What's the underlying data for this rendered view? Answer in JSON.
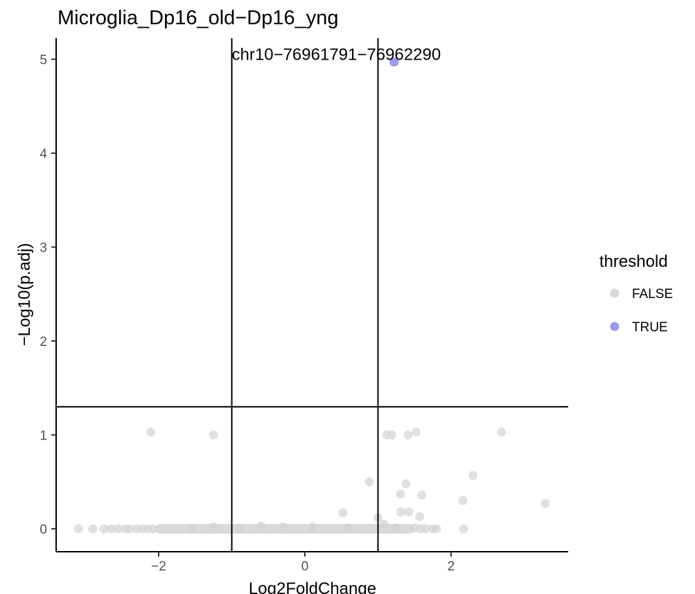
{
  "chart_data": {
    "type": "scatter",
    "title": "Microglia_Dp16_old−Dp16_yng",
    "xlabel": "Log2FoldChange",
    "ylabel": "−Log10(p.adj)",
    "xlim": [
      -3.4,
      3.6
    ],
    "ylim": [
      -0.25,
      5.2
    ],
    "xticks": [
      -2,
      0,
      2
    ],
    "xtick_labels": [
      "−2",
      "0",
      "2"
    ],
    "yticks": [
      0,
      1,
      2,
      3,
      4,
      5
    ],
    "ytick_labels": [
      "0",
      "1",
      "2",
      "3",
      "4",
      "5"
    ],
    "grid": false,
    "reference_lines": {
      "vertical": [
        -1,
        1
      ],
      "horizontal": [
        1.3
      ]
    },
    "legend": {
      "title": "threshold",
      "placement": "right",
      "entries": [
        {
          "label": "FALSE",
          "color": "#d3d3d3"
        },
        {
          "label": "TRUE",
          "color": "#8f8ff0"
        }
      ]
    },
    "annotations": [
      {
        "text": "chr10−76961791−76962290",
        "x": 0.43,
        "y": 5.0
      }
    ],
    "dense_band": {
      "x_from": -2.05,
      "x_to": 1.5,
      "y": 0.0
    },
    "series": [
      {
        "name": "FALSE",
        "color": "#d3d3d3",
        "points": [
          [
            -3.1,
            0
          ],
          [
            -2.9,
            0
          ],
          [
            -2.75,
            0
          ],
          [
            -2.65,
            0
          ],
          [
            -2.55,
            0
          ],
          [
            -2.45,
            0
          ],
          [
            -2.4,
            0
          ],
          [
            -2.3,
            0
          ],
          [
            -2.22,
            0
          ],
          [
            -2.15,
            0
          ],
          [
            -2.08,
            0
          ],
          [
            -1.55,
            0
          ],
          [
            -1.25,
            0.02
          ],
          [
            -0.9,
            0.01
          ],
          [
            -0.6,
            0.03
          ],
          [
            -0.3,
            0.02
          ],
          [
            0.1,
            0.02
          ],
          [
            0.6,
            0.01
          ],
          [
            1.25,
            0.01
          ],
          [
            1.5,
            0.01
          ],
          [
            1.58,
            0
          ],
          [
            1.65,
            0
          ],
          [
            1.75,
            0
          ],
          [
            1.8,
            0
          ],
          [
            2.17,
            0
          ],
          [
            -2.11,
            1.03
          ],
          [
            -1.25,
            1.0
          ],
          [
            1.12,
            1.0
          ],
          [
            1.19,
            1.0
          ],
          [
            1.41,
            1.0
          ],
          [
            1.52,
            1.03
          ],
          [
            2.69,
            1.03
          ],
          [
            0.52,
            0.17
          ],
          [
            0.88,
            0.5
          ],
          [
            1.0,
            0.12
          ],
          [
            1.08,
            0.05
          ],
          [
            1.31,
            0.37
          ],
          [
            1.38,
            0.48
          ],
          [
            1.31,
            0.18
          ],
          [
            1.42,
            0.18
          ],
          [
            1.57,
            0.13
          ],
          [
            1.6,
            0.36
          ],
          [
            2.16,
            0.3
          ],
          [
            2.3,
            0.57
          ],
          [
            3.29,
            0.27
          ]
        ]
      },
      {
        "name": "TRUE",
        "color": "#8f8ff0",
        "points": [
          [
            1.22,
            4.97
          ]
        ]
      }
    ]
  }
}
